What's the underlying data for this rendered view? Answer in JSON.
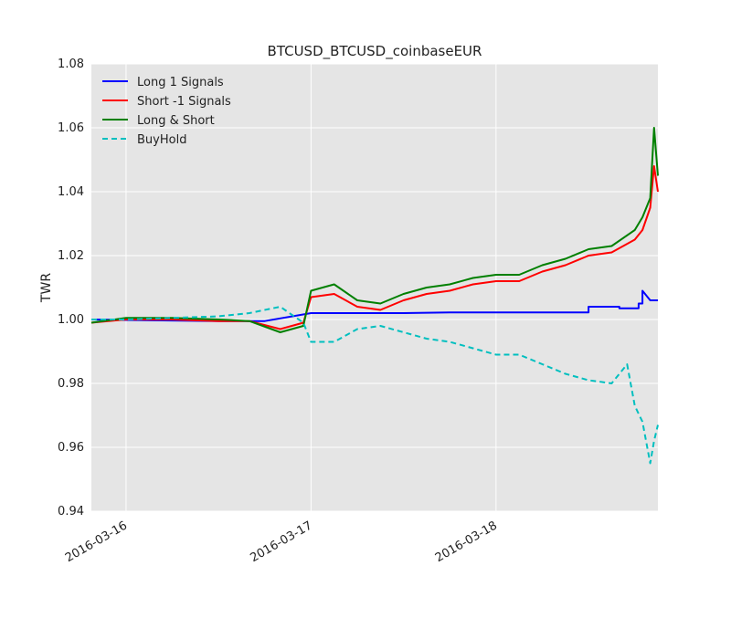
{
  "chart_data": {
    "type": "line",
    "title": "BTCUSD_BTCUSD_coinbaseEUR",
    "xlabel": "",
    "ylabel": "TWR",
    "xlim": [
      "2016-03-15T19:30",
      "2016-03-18T21:00"
    ],
    "ylim": [
      0.94,
      1.08
    ],
    "x_tick_labels": [
      "2016-03-16",
      "2016-03-17",
      "2016-03-18"
    ],
    "y_tick_labels": [
      "0.94",
      "0.96",
      "0.98",
      "1.00",
      "1.02",
      "1.04",
      "1.06",
      "1.08"
    ],
    "grid": true,
    "legend_position": "top-left",
    "series": [
      {
        "name": "Long 1 Signals",
        "color": "#0000ff",
        "style": "solid",
        "x": [
          "2016-03-15T19:30",
          "2016-03-16T12:00",
          "2016-03-16T18:00",
          "2016-03-17T00:00",
          "2016-03-17T06:00",
          "2016-03-17T12:00",
          "2016-03-17T18:00",
          "2016-03-18T00:00",
          "2016-03-18T06:00",
          "2016-03-18T12:00",
          "2016-03-18T12:00",
          "2016-03-18T16:00",
          "2016-03-18T16:00",
          "2016-03-18T18:30",
          "2016-03-18T18:30",
          "2016-03-18T19:00",
          "2016-03-18T19:00",
          "2016-03-18T20:00",
          "2016-03-18T21:00"
        ],
        "y": [
          1.0,
          0.9995,
          0.9995,
          1.002,
          1.002,
          1.002,
          1.0022,
          1.0022,
          1.0022,
          1.0022,
          1.004,
          1.004,
          1.0035,
          1.0035,
          1.005,
          1.005,
          1.009,
          1.006,
          1.006
        ]
      },
      {
        "name": "Short -1 Signals",
        "color": "#ff0000",
        "style": "solid",
        "x": [
          "2016-03-15T19:30",
          "2016-03-16T00:00",
          "2016-03-16T06:00",
          "2016-03-16T12:00",
          "2016-03-16T16:00",
          "2016-03-16T20:00",
          "2016-03-16T23:00",
          "2016-03-17T00:00",
          "2016-03-17T03:00",
          "2016-03-17T06:00",
          "2016-03-17T09:00",
          "2016-03-17T12:00",
          "2016-03-17T15:00",
          "2016-03-17T18:00",
          "2016-03-17T21:00",
          "2016-03-18T00:00",
          "2016-03-18T03:00",
          "2016-03-18T06:00",
          "2016-03-18T09:00",
          "2016-03-18T12:00",
          "2016-03-18T15:00",
          "2016-03-18T18:00",
          "2016-03-18T19:00",
          "2016-03-18T20:00",
          "2016-03-18T20:30",
          "2016-03-18T21:00"
        ],
        "y": [
          0.999,
          1.0,
          1.0,
          0.9995,
          0.9995,
          0.997,
          0.999,
          1.007,
          1.008,
          1.004,
          1.003,
          1.006,
          1.008,
          1.009,
          1.011,
          1.012,
          1.012,
          1.015,
          1.017,
          1.02,
          1.021,
          1.025,
          1.028,
          1.035,
          1.048,
          1.04
        ]
      },
      {
        "name": "Long & Short",
        "color": "#008000",
        "style": "solid",
        "x": [
          "2016-03-15T19:30",
          "2016-03-16T00:00",
          "2016-03-16T06:00",
          "2016-03-16T12:00",
          "2016-03-16T16:00",
          "2016-03-16T20:00",
          "2016-03-16T23:00",
          "2016-03-17T00:00",
          "2016-03-17T03:00",
          "2016-03-17T06:00",
          "2016-03-17T09:00",
          "2016-03-17T12:00",
          "2016-03-17T15:00",
          "2016-03-17T18:00",
          "2016-03-17T21:00",
          "2016-03-18T00:00",
          "2016-03-18T03:00",
          "2016-03-18T06:00",
          "2016-03-18T09:00",
          "2016-03-18T12:00",
          "2016-03-18T15:00",
          "2016-03-18T18:00",
          "2016-03-18T19:00",
          "2016-03-18T20:00",
          "2016-03-18T20:30",
          "2016-03-18T21:00"
        ],
        "y": [
          0.999,
          1.0005,
          1.0005,
          1.0,
          0.9995,
          0.996,
          0.998,
          1.009,
          1.011,
          1.006,
          1.005,
          1.008,
          1.01,
          1.011,
          1.013,
          1.014,
          1.014,
          1.017,
          1.019,
          1.022,
          1.023,
          1.028,
          1.032,
          1.038,
          1.06,
          1.045
        ]
      },
      {
        "name": "BuyHold",
        "color": "#00bfbf",
        "style": "dashed",
        "x": [
          "2016-03-15T19:30",
          "2016-03-16T00:00",
          "2016-03-16T06:00",
          "2016-03-16T12:00",
          "2016-03-16T16:00",
          "2016-03-16T20:00",
          "2016-03-16T23:00",
          "2016-03-17T00:00",
          "2016-03-17T03:00",
          "2016-03-17T06:00",
          "2016-03-17T09:00",
          "2016-03-17T12:00",
          "2016-03-17T15:00",
          "2016-03-17T18:00",
          "2016-03-17T21:00",
          "2016-03-18T00:00",
          "2016-03-18T03:00",
          "2016-03-18T06:00",
          "2016-03-18T09:00",
          "2016-03-18T12:00",
          "2016-03-18T15:00",
          "2016-03-18T17:00",
          "2016-03-18T18:00",
          "2016-03-18T19:00",
          "2016-03-18T20:00",
          "2016-03-18T20:30",
          "2016-03-18T21:00"
        ],
        "y": [
          1.0,
          1.0,
          1.0005,
          1.001,
          1.002,
          1.004,
          0.999,
          0.993,
          0.993,
          0.997,
          0.998,
          0.996,
          0.994,
          0.993,
          0.991,
          0.989,
          0.989,
          0.986,
          0.983,
          0.981,
          0.98,
          0.986,
          0.973,
          0.968,
          0.955,
          0.962,
          0.967
        ]
      }
    ]
  }
}
